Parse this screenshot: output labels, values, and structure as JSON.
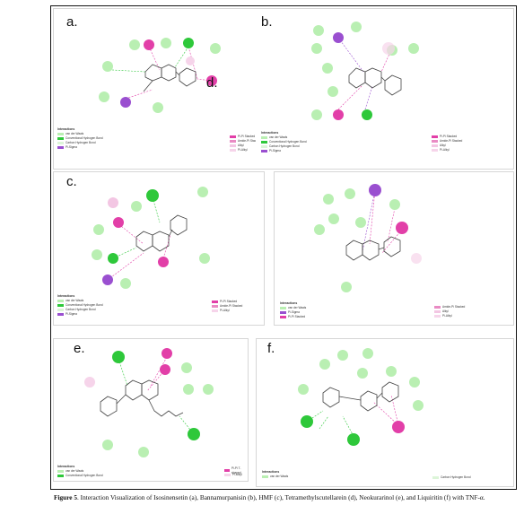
{
  "figure": {
    "panel_labels": {
      "a": "a.",
      "b": "b.",
      "c": "c.",
      "d": "d.",
      "e": "e.",
      "f": "f."
    },
    "legend_heading": "Interactions",
    "caption_bold": "Figure 5",
    "caption_text": ". Interaction Visualization of Isosinensetin (a), Bannamurpanisin (b), HMF (c), Tetramethylscutellarein (d), Neokurarinol (e), and Liquiritin (f) with TNF-α."
  },
  "legends": {
    "a_left": [
      "van der Waals",
      "Conventional Hydrogen Bond",
      "Carbon Hydrogen Bond",
      "Pi-Sigma"
    ],
    "a_right": [
      "Pi-Pi Stacked",
      "Amide-Pi Stacked",
      "Alkyl",
      "Pi-Alkyl"
    ],
    "b_left": [
      "van der Waals",
      "Conventional Hydrogen Bond",
      "Carbon Hydrogen Bond",
      "Pi-Sigma"
    ],
    "b_right": [
      "Pi-Pi Stacked",
      "Amide-Pi Stacked",
      "Alkyl",
      "Pi-Alkyl"
    ],
    "c_left": [
      "van der Waals",
      "Conventional Hydrogen Bond",
      "Carbon Hydrogen Bond",
      "Pi-Sigma"
    ],
    "c_right": [
      "Pi-Pi Stacked",
      "Amide-Pi Stacked",
      "Pi-Alkyl"
    ],
    "d_left": [
      "van der Waals",
      "Pi-Sigma",
      "Pi-Pi Stacked"
    ],
    "d_right": [
      "Amide-Pi Stacked",
      "Alkyl",
      "Pi-Alkyl"
    ],
    "e_left": [
      "van der Waals",
      "Conventional Hydrogen Bond"
    ],
    "e_right": [
      "Pi-Pi T-shaped",
      "Pi-Alkyl"
    ],
    "f_left": [
      "van der Waals"
    ],
    "f_right": [
      "Carbon Hydrogen Bond"
    ]
  },
  "colors": {
    "vdw": "#b9efb2",
    "hbond": "#2ec83a",
    "chbond": "#dcf5d8",
    "pisigma": "#9a4fd0",
    "pipi": "#e23fa8",
    "amide": "#e98bc4",
    "alkyl": "#f3c6e3",
    "pialkyl": "#f6d4ea"
  }
}
